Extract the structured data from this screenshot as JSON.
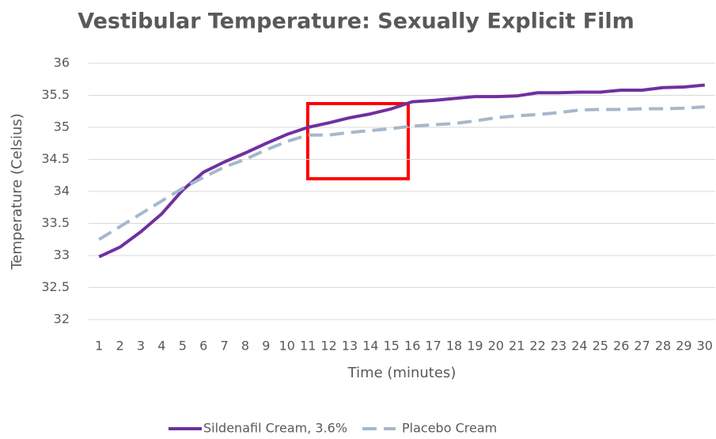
{
  "chart_data": {
    "type": "line",
    "title": "Vestibular Temperature: Sexually Explicit Film",
    "x_label": "Time (minutes)",
    "y_label": "Temperature (Celsius)",
    "categories": [
      "1",
      "2",
      "3",
      "4",
      "5",
      "6",
      "7",
      "8",
      "9",
      "10",
      "11",
      "12",
      "13",
      "14",
      "15",
      "16",
      "17",
      "18",
      "19",
      "20",
      "21",
      "22",
      "23",
      "24",
      "25",
      "26",
      "27",
      "28",
      "29",
      "30"
    ],
    "series": [
      {
        "name": "Sildenafil Cream, 3.6%",
        "color": "#7030a0",
        "dashed": false,
        "values": [
          32.98,
          33.13,
          33.37,
          33.65,
          34.02,
          34.3,
          34.46,
          34.6,
          34.75,
          34.89,
          35.0,
          35.07,
          35.15,
          35.21,
          35.29,
          35.4,
          35.42,
          35.45,
          35.48,
          35.48,
          35.49,
          35.54,
          35.54,
          35.55,
          35.55,
          35.58,
          35.58,
          35.62,
          35.63,
          35.66
        ]
      },
      {
        "name": "Placebo Cream",
        "color": "#a5b8cc",
        "dashed": true,
        "values": [
          33.25,
          33.45,
          33.65,
          33.85,
          34.05,
          34.22,
          34.38,
          34.5,
          34.65,
          34.78,
          34.88,
          34.88,
          34.92,
          34.95,
          34.98,
          35.02,
          35.04,
          35.06,
          35.1,
          35.15,
          35.18,
          35.2,
          35.23,
          35.27,
          35.28,
          35.28,
          35.29,
          35.29,
          35.3,
          35.32
        ]
      }
    ],
    "ylim": [
      32,
      36
    ],
    "yticks": [
      32,
      32.5,
      33,
      33.5,
      34,
      34.5,
      35,
      35.5,
      36
    ],
    "grid": true,
    "legend": "bottom"
  }
}
